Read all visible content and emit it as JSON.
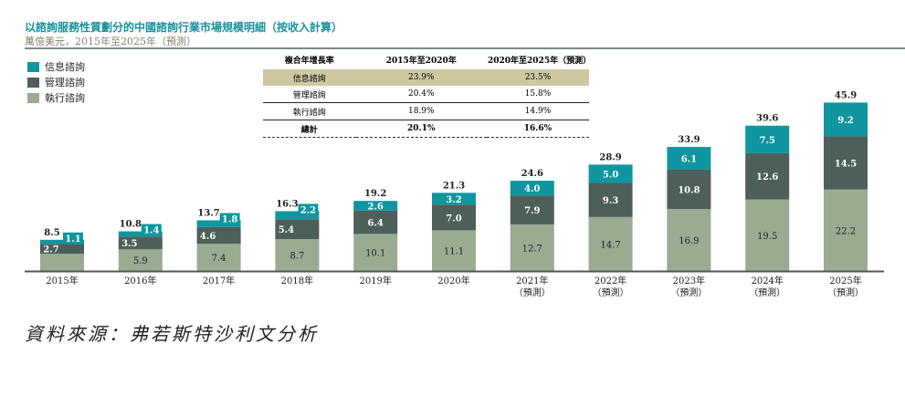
{
  "header": {
    "title": "以諮詢服務性質劃分的中國諮詢行業市場規模明細（按收入計算）",
    "subtitle": "萬億美元，2015年至2025年（預測）"
  },
  "legend": [
    {
      "label": "信息諮詢",
      "color": "#0f96a0"
    },
    {
      "label": "管理諮詢",
      "color": "#4d5f5b"
    },
    {
      "label": "執行諮詢",
      "color": "#9aab91"
    }
  ],
  "cagr_table": {
    "headers": [
      "複合年增長率",
      "2015年至2020年",
      "2020年至2025年（預測）"
    ],
    "rows": [
      [
        "信息諮詢",
        "23.9%",
        "23.5%"
      ],
      [
        "管理諮詢",
        "20.4%",
        "15.8%"
      ],
      [
        "執行諮詢",
        "18.9%",
        "14.9%"
      ],
      [
        "總計",
        "20.1%",
        "16.6%"
      ]
    ]
  },
  "chart_data": {
    "type": "bar",
    "stacked": true,
    "categories": [
      "2015年",
      "2016年",
      "2017年",
      "2018年",
      "2019年",
      "2020年",
      "2021年",
      "2022年",
      "2023年",
      "2024年",
      "2025年"
    ],
    "forecast_note": "（預測）",
    "forecast_from": "2021年",
    "series": [
      {
        "name": "執行諮詢",
        "values": [
          4.7,
          5.9,
          7.4,
          8.7,
          10.1,
          11.1,
          12.7,
          14.7,
          16.9,
          19.5,
          22.2
        ],
        "labeled": [
          false,
          true,
          true,
          true,
          true,
          true,
          true,
          true,
          true,
          true,
          true
        ]
      },
      {
        "name": "管理諮詢",
        "values": [
          2.7,
          3.5,
          4.6,
          5.4,
          6.4,
          7.0,
          7.9,
          9.3,
          10.8,
          12.6,
          14.5
        ]
      },
      {
        "name": "信息諮詢",
        "values": [
          1.1,
          1.4,
          1.8,
          2.2,
          2.6,
          3.2,
          4.0,
          5.0,
          6.1,
          7.5,
          9.2
        ]
      }
    ],
    "totals": [
      8.5,
      10.8,
      13.7,
      16.3,
      19.2,
      21.3,
      24.6,
      28.9,
      33.9,
      39.6,
      45.9
    ],
    "ylim": [
      0,
      46
    ]
  },
  "footer": {
    "source": "資料來源：弗若斯特沙利文分析"
  }
}
